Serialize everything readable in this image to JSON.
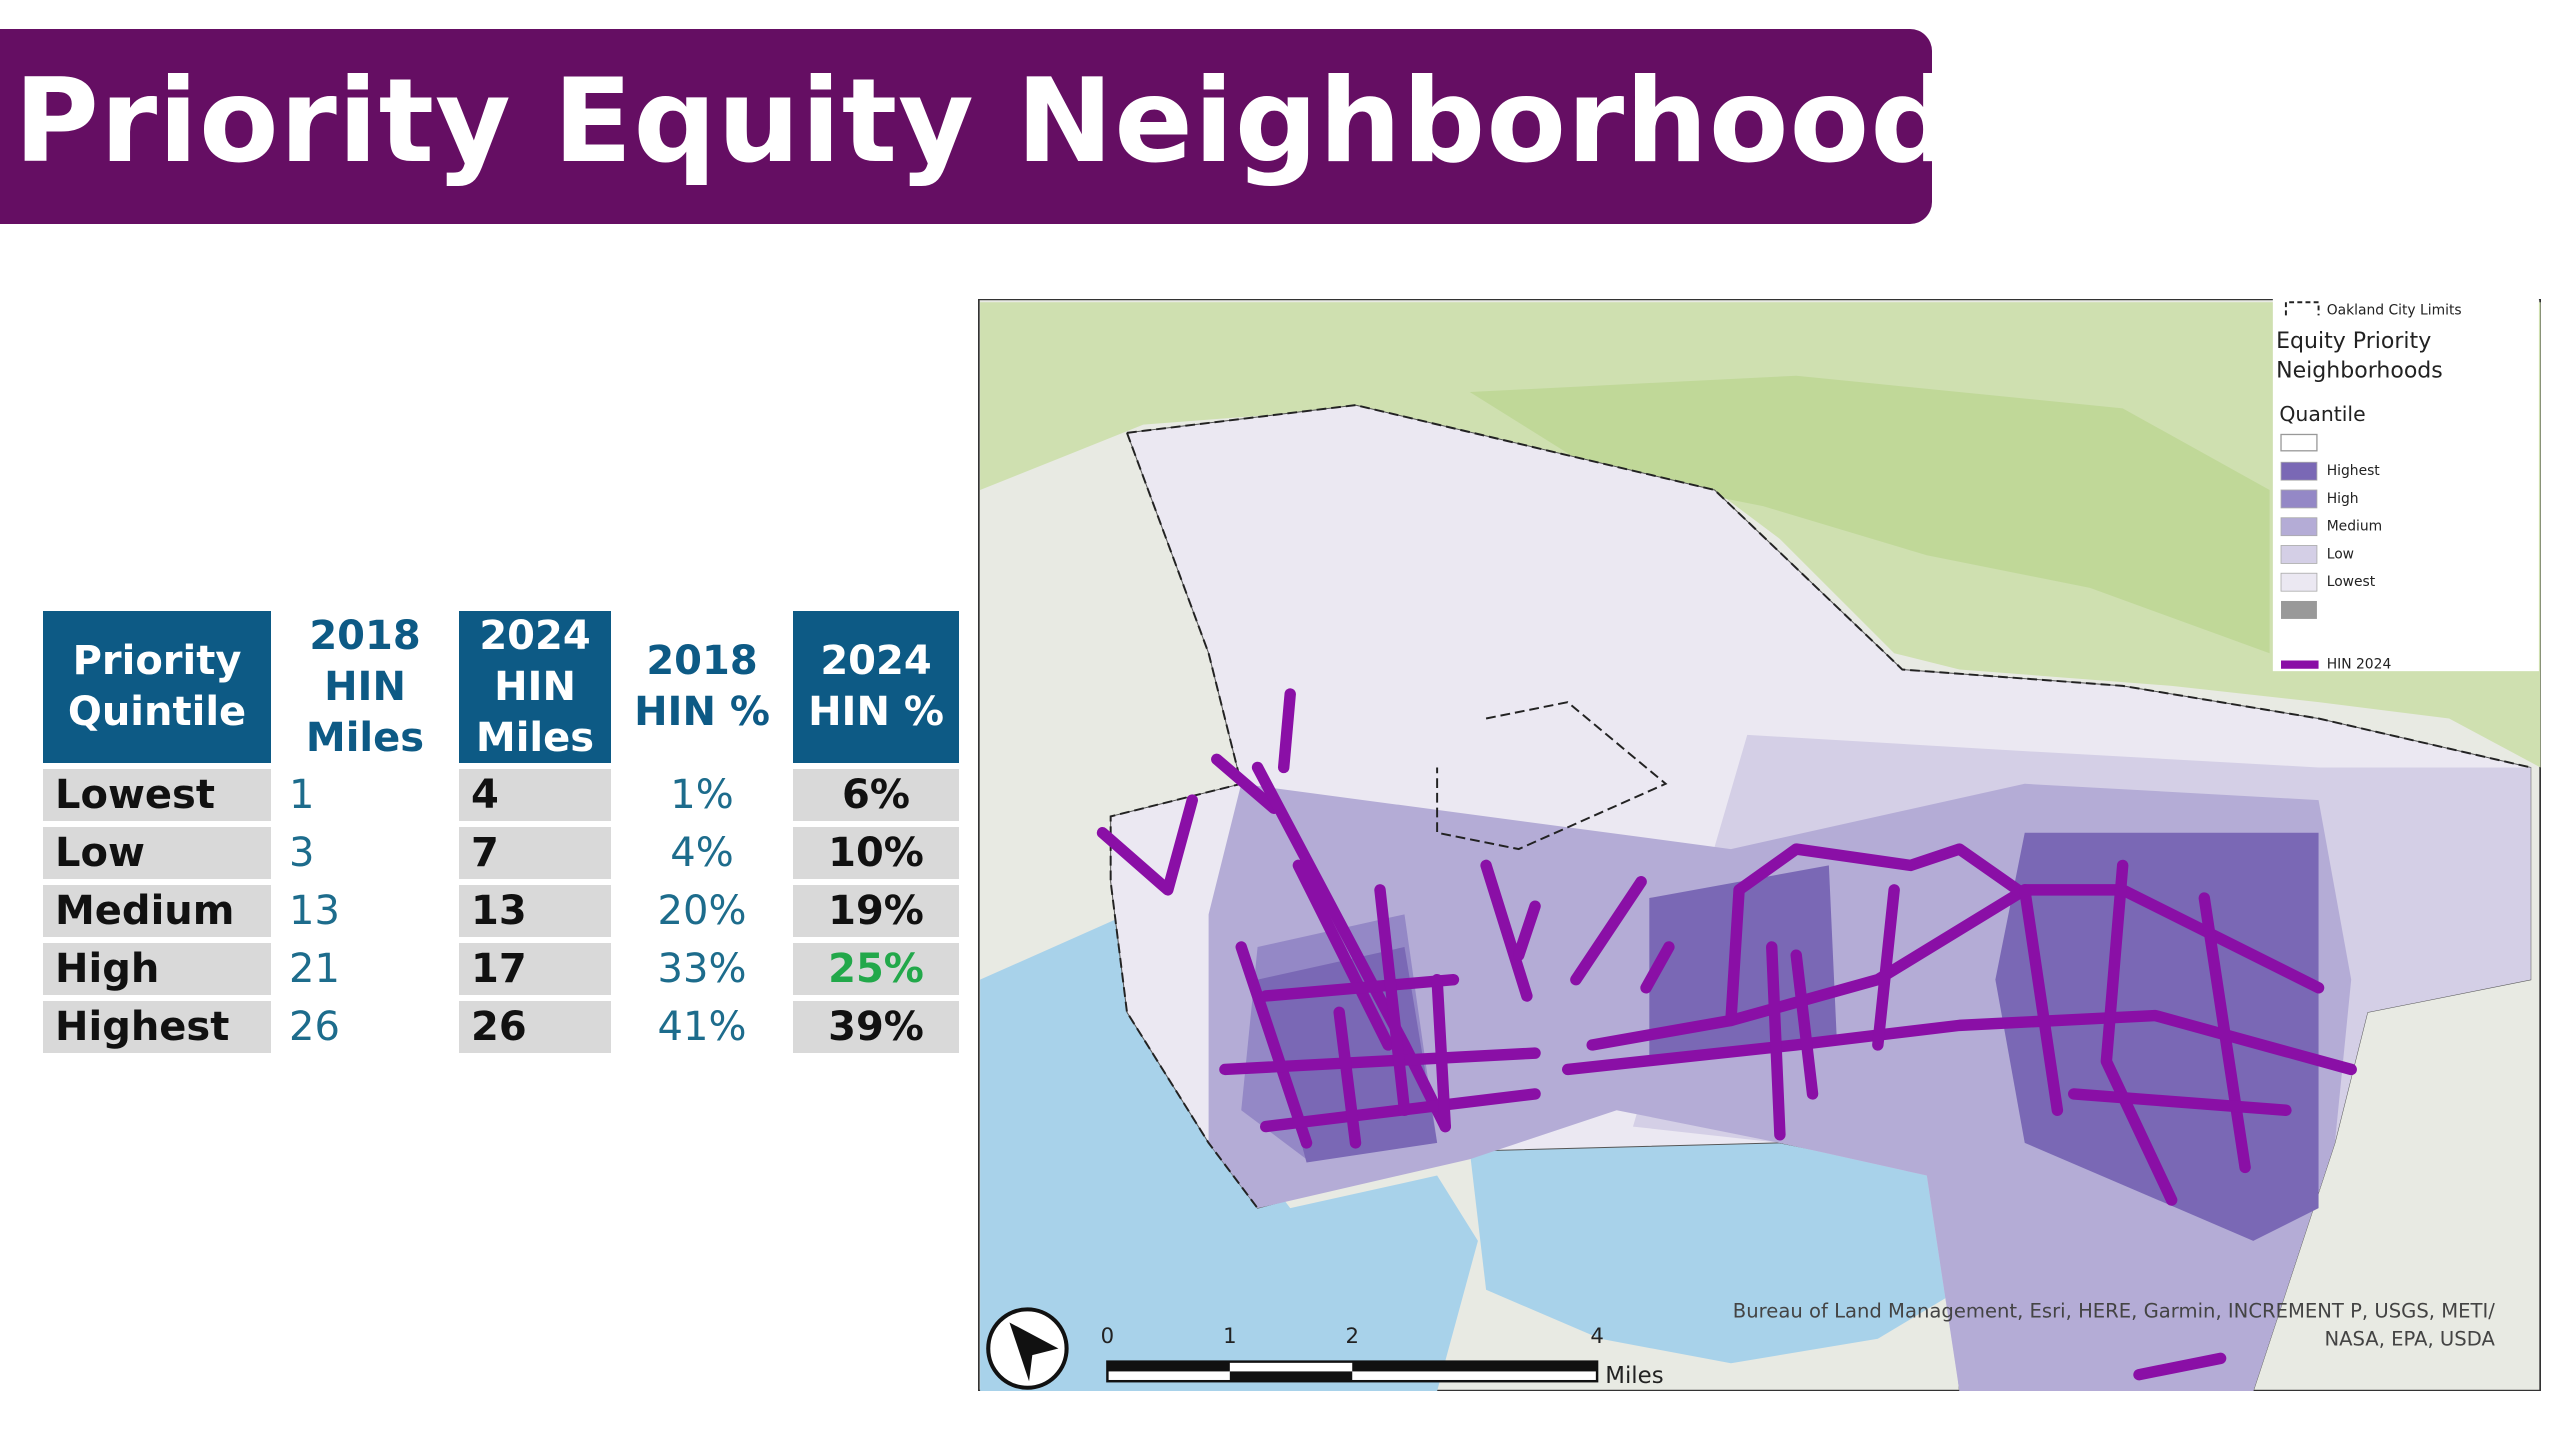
{
  "header": {
    "title": "Priority Equity Neighborhoods"
  },
  "table": {
    "headers": [
      "Priority Quintile",
      "2018 HIN Miles",
      "2024 HIN Miles",
      "2018 HIN %",
      "2024 HIN %"
    ],
    "rows": [
      [
        "Lowest",
        "1",
        "4",
        "1%",
        "6%"
      ],
      [
        "Low",
        "3",
        "7",
        "4%",
        "10%"
      ],
      [
        "Medium",
        "13",
        "13",
        "20%",
        "19%"
      ],
      [
        "High",
        "21",
        "17",
        "33%",
        "25%"
      ],
      [
        "Highest",
        "26",
        "26",
        "41%",
        "39%"
      ]
    ]
  },
  "map": {
    "legend": {
      "city_limits": "Oakland City Limits",
      "title": "Equity Priority Neighborhoods",
      "subtitle": "Quantile",
      "items": [
        "Highest",
        "High",
        "Medium",
        "Low",
        "Lowest"
      ],
      "hin": "HIN 2024"
    },
    "scale": {
      "ticks": [
        "0",
        "1",
        "2",
        "4"
      ],
      "unit": "Miles"
    },
    "attribution": "Bureau of Land Management, Esri, HERE, Garmin, INCREMENT P, USGS, METI/ NASA, EPA, USDA"
  }
}
